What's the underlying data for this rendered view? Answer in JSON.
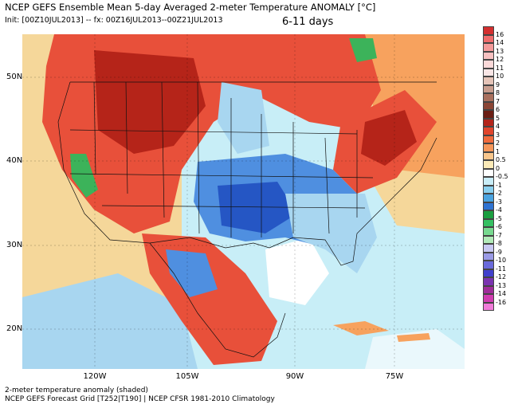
{
  "header": {
    "title": "NCEP GEFS Ensemble Mean 5-day Averaged 2-meter Temperature ANOMALY [°C]",
    "init": "Init: [00Z10JUL2013] -- fx: 00Z16JUL2013--00Z21JUL2013",
    "range": "6-11 days"
  },
  "map": {
    "lat_labels": [
      "50N",
      "40N",
      "30N",
      "20N"
    ],
    "lon_labels": [
      "120W",
      "105W",
      "90W",
      "75W"
    ],
    "colors": {
      "ocean_warm": "#f5d79a",
      "ocean_cool": "#c8eef7",
      "land_hot": "#e8503a",
      "land_very_hot": "#b52419",
      "land_cool": "#4f8fe0",
      "land_cold": "#2556c4",
      "pale_blue": "#a8d6f0",
      "light_orange": "#f7a25e",
      "green": "#3cb35a"
    }
  },
  "colorbar": {
    "labels": [
      "16",
      "14",
      "13",
      "12",
      "11",
      "10",
      "9",
      "8",
      "7",
      "6",
      "5",
      "4",
      "3",
      "2",
      "1",
      "0.5",
      "0",
      "-0.5",
      "-1",
      "-2",
      "-3",
      "-4",
      "-5",
      "-6",
      "-7",
      "-8",
      "-9",
      "-10",
      "-11",
      "-12",
      "-13",
      "-14",
      "-16"
    ],
    "colors": [
      "#d32f2f",
      "#f06b6b",
      "#f49a9a",
      "#f7c0c0",
      "#fbd9d9",
      "#f8e6e6",
      "#e5c4b8",
      "#c89d8e",
      "#a9705e",
      "#8b4535",
      "#6b1e14",
      "#b3241a",
      "#e0452c",
      "#f06a3c",
      "#f5965a",
      "#f8c68c",
      "#fbeab7",
      "#ffffff",
      "#c9edf7",
      "#8ad0ef",
      "#4aa3e0",
      "#2f73d2",
      "#1a9e3f",
      "#35c062",
      "#77d98f",
      "#b2ebb9",
      "#c8c8f2",
      "#9a9ae6",
      "#6a6adb",
      "#4040cc",
      "#7a34b0",
      "#a02c9a",
      "#d03cb0",
      "#f07bd8"
    ]
  },
  "footer": {
    "line1": "2-meter temperature anomaly (shaded)",
    "line2": "NCEP GEFS Forecast Grid [T252|T190] | NCEP CFSR 1981-2010 Climatology"
  }
}
